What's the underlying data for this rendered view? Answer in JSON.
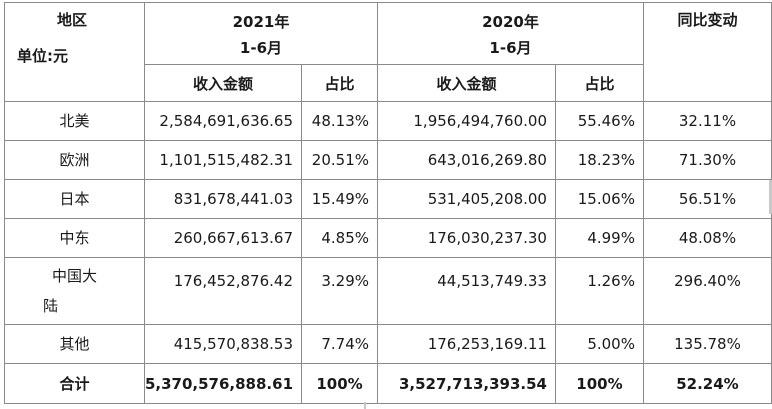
{
  "header": {
    "region_label": "地区",
    "unit_label": "单位:元",
    "year_2021": "2021年",
    "period_2021": "1-6月",
    "year_2020": "2020年",
    "period_2020": "1-6月",
    "yoy_label": "同比变动",
    "revenue_2021": "收入金额",
    "share_2021": "占比",
    "revenue_2020": "收入金额",
    "share_2020": "占比"
  },
  "rows": [
    {
      "region": "北美",
      "rev2021": "2,584,691,636.65",
      "share2021": "48.13%",
      "rev2020": "1,956,494,760.00",
      "share2020": "55.46%",
      "yoy": "32.11%"
    },
    {
      "region": "欧洲",
      "rev2021": "1,101,515,482.31",
      "share2021": "20.51%",
      "rev2020": "643,016,269.80",
      "share2020": "18.23%",
      "yoy": "71.30%"
    },
    {
      "region": "日本",
      "rev2021": "831,678,441.03",
      "share2021": "15.49%",
      "rev2020": "531,405,208.00",
      "share2020": "15.06%",
      "yoy": "56.51%"
    },
    {
      "region": "中东",
      "rev2021": "260,667,613.67",
      "share2021": "4.85%",
      "rev2020": "176,030,237.30",
      "share2020": "4.99%",
      "yoy": "48.08%"
    },
    {
      "region_line1": "中国大",
      "region_line2": "陆",
      "rev2021": "176,452,876.42",
      "share2021": "3.29%",
      "rev2020": "44,513,749.33",
      "share2020": "1.26%",
      "yoy": "296.40%"
    },
    {
      "region": "其他",
      "rev2021": "415,570,838.53",
      "share2021": "7.74%",
      "rev2020": "176,253,169.11",
      "share2020": "5.00%",
      "yoy": "135.78%"
    }
  ],
  "total": {
    "region": "合计",
    "rev2021": "5,370,576,888.61",
    "share2021": "100%",
    "rev2020": "3,527,713,393.54",
    "share2020": "100%",
    "yoy": "52.24%"
  }
}
